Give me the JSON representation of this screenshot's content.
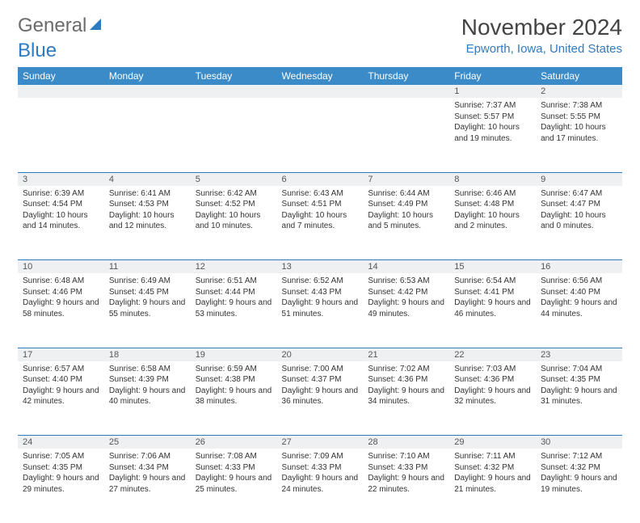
{
  "logo": {
    "part1": "General",
    "part2": "Blue"
  },
  "title": "November 2024",
  "location": "Epworth, Iowa, United States",
  "colors": {
    "header_bg": "#3b8bc9",
    "accent": "#2f7bbf",
    "daynum_bg": "#eef0f2",
    "text": "#333333",
    "logo_gray": "#6b6b6b"
  },
  "weekdays": [
    "Sunday",
    "Monday",
    "Tuesday",
    "Wednesday",
    "Thursday",
    "Friday",
    "Saturday"
  ],
  "weeks": [
    [
      null,
      null,
      null,
      null,
      null,
      {
        "n": "1",
        "sr": "7:37 AM",
        "ss": "5:57 PM",
        "dl": "10 hours and 19 minutes."
      },
      {
        "n": "2",
        "sr": "7:38 AM",
        "ss": "5:55 PM",
        "dl": "10 hours and 17 minutes."
      }
    ],
    [
      {
        "n": "3",
        "sr": "6:39 AM",
        "ss": "4:54 PM",
        "dl": "10 hours and 14 minutes."
      },
      {
        "n": "4",
        "sr": "6:41 AM",
        "ss": "4:53 PM",
        "dl": "10 hours and 12 minutes."
      },
      {
        "n": "5",
        "sr": "6:42 AM",
        "ss": "4:52 PM",
        "dl": "10 hours and 10 minutes."
      },
      {
        "n": "6",
        "sr": "6:43 AM",
        "ss": "4:51 PM",
        "dl": "10 hours and 7 minutes."
      },
      {
        "n": "7",
        "sr": "6:44 AM",
        "ss": "4:49 PM",
        "dl": "10 hours and 5 minutes."
      },
      {
        "n": "8",
        "sr": "6:46 AM",
        "ss": "4:48 PM",
        "dl": "10 hours and 2 minutes."
      },
      {
        "n": "9",
        "sr": "6:47 AM",
        "ss": "4:47 PM",
        "dl": "10 hours and 0 minutes."
      }
    ],
    [
      {
        "n": "10",
        "sr": "6:48 AM",
        "ss": "4:46 PM",
        "dl": "9 hours and 58 minutes."
      },
      {
        "n": "11",
        "sr": "6:49 AM",
        "ss": "4:45 PM",
        "dl": "9 hours and 55 minutes."
      },
      {
        "n": "12",
        "sr": "6:51 AM",
        "ss": "4:44 PM",
        "dl": "9 hours and 53 minutes."
      },
      {
        "n": "13",
        "sr": "6:52 AM",
        "ss": "4:43 PM",
        "dl": "9 hours and 51 minutes."
      },
      {
        "n": "14",
        "sr": "6:53 AM",
        "ss": "4:42 PM",
        "dl": "9 hours and 49 minutes."
      },
      {
        "n": "15",
        "sr": "6:54 AM",
        "ss": "4:41 PM",
        "dl": "9 hours and 46 minutes."
      },
      {
        "n": "16",
        "sr": "6:56 AM",
        "ss": "4:40 PM",
        "dl": "9 hours and 44 minutes."
      }
    ],
    [
      {
        "n": "17",
        "sr": "6:57 AM",
        "ss": "4:40 PM",
        "dl": "9 hours and 42 minutes."
      },
      {
        "n": "18",
        "sr": "6:58 AM",
        "ss": "4:39 PM",
        "dl": "9 hours and 40 minutes."
      },
      {
        "n": "19",
        "sr": "6:59 AM",
        "ss": "4:38 PM",
        "dl": "9 hours and 38 minutes."
      },
      {
        "n": "20",
        "sr": "7:00 AM",
        "ss": "4:37 PM",
        "dl": "9 hours and 36 minutes."
      },
      {
        "n": "21",
        "sr": "7:02 AM",
        "ss": "4:36 PM",
        "dl": "9 hours and 34 minutes."
      },
      {
        "n": "22",
        "sr": "7:03 AM",
        "ss": "4:36 PM",
        "dl": "9 hours and 32 minutes."
      },
      {
        "n": "23",
        "sr": "7:04 AM",
        "ss": "4:35 PM",
        "dl": "9 hours and 31 minutes."
      }
    ],
    [
      {
        "n": "24",
        "sr": "7:05 AM",
        "ss": "4:35 PM",
        "dl": "9 hours and 29 minutes."
      },
      {
        "n": "25",
        "sr": "7:06 AM",
        "ss": "4:34 PM",
        "dl": "9 hours and 27 minutes."
      },
      {
        "n": "26",
        "sr": "7:08 AM",
        "ss": "4:33 PM",
        "dl": "9 hours and 25 minutes."
      },
      {
        "n": "27",
        "sr": "7:09 AM",
        "ss": "4:33 PM",
        "dl": "9 hours and 24 minutes."
      },
      {
        "n": "28",
        "sr": "7:10 AM",
        "ss": "4:33 PM",
        "dl": "9 hours and 22 minutes."
      },
      {
        "n": "29",
        "sr": "7:11 AM",
        "ss": "4:32 PM",
        "dl": "9 hours and 21 minutes."
      },
      {
        "n": "30",
        "sr": "7:12 AM",
        "ss": "4:32 PM",
        "dl": "9 hours and 19 minutes."
      }
    ]
  ],
  "labels": {
    "sunrise": "Sunrise:",
    "sunset": "Sunset:",
    "daylight": "Daylight:"
  }
}
